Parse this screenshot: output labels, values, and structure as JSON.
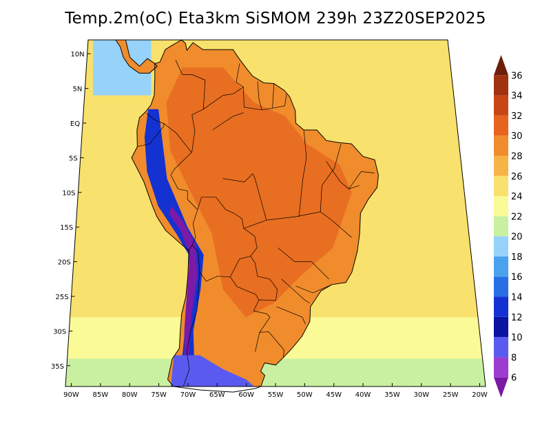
{
  "title": "Temp.2m(oC) Eta3km SiSMOM 239h 23Z20SEP2025",
  "map": {
    "lat_labels": [
      "10N",
      "5N",
      "EQ",
      "5S",
      "10S",
      "15S",
      "20S",
      "25S",
      "30S",
      "35S"
    ],
    "lon_labels": [
      "90W",
      "85W",
      "80W",
      "75W",
      "70W",
      "65W",
      "60W",
      "55W",
      "50W",
      "45W",
      "40W",
      "35W",
      "30W",
      "25W",
      "20W"
    ],
    "lat_range": [
      -38,
      12
    ],
    "lon_range": [
      -91,
      -19
    ]
  },
  "colorbar": {
    "labels": [
      "6",
      "8",
      "10",
      "12",
      "14",
      "16",
      "18",
      "20",
      "22",
      "24",
      "26",
      "28",
      "30",
      "32",
      "34",
      "36"
    ],
    "bins": [
      {
        "color": "#7a1aa6"
      },
      {
        "color": "#9c3cd1"
      },
      {
        "color": "#5a5af0"
      },
      {
        "color": "#0a14a0"
      },
      {
        "color": "#1432d2"
      },
      {
        "color": "#2a6ee6"
      },
      {
        "color": "#4aa2ee"
      },
      {
        "color": "#96d2fa"
      },
      {
        "color": "#c8f0a0"
      },
      {
        "color": "#fafa96"
      },
      {
        "color": "#f8e16c"
      },
      {
        "color": "#f7b446"
      },
      {
        "color": "#f08c2c"
      },
      {
        "color": "#e6641e"
      },
      {
        "color": "#c84616"
      },
      {
        "color": "#a03210"
      },
      {
        "color": "#6e1e0a"
      }
    ]
  },
  "colors": {
    "ocean_warm": "#f8e16c",
    "ocean_cool": "#fafa96",
    "ocean_cold": "#c8f0a0",
    "land_hot": "#e6641e",
    "land_warm": "#f08c2c",
    "andes_cold": "#1432d2",
    "andes_peak": "#7a1aa6",
    "coastline": "#000000"
  }
}
